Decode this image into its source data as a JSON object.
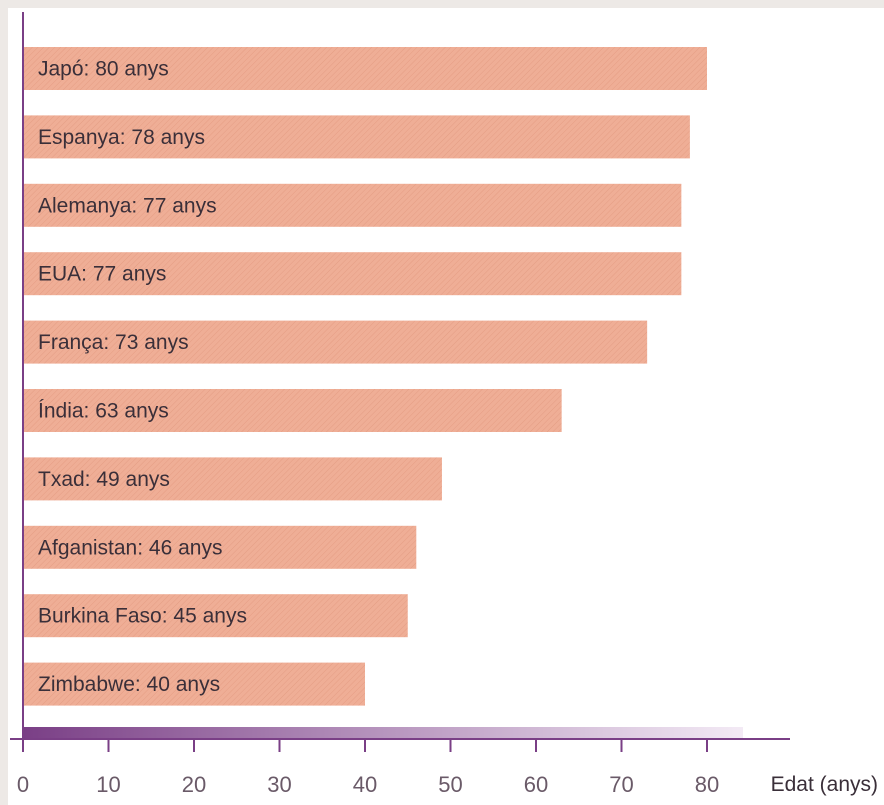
{
  "chart_data": {
    "type": "bar",
    "orientation": "horizontal",
    "categories": [
      "Japó",
      "Espanya",
      "Alemanya",
      "EUA",
      "França",
      "Índia",
      "Txad",
      "Afganistan",
      "Burkina Faso",
      "Zimbabwe"
    ],
    "values": [
      80,
      78,
      77,
      77,
      73,
      63,
      49,
      46,
      45,
      40
    ],
    "bar_labels": [
      "Japó: 80 anys",
      "Espanya: 78 anys",
      "Alemanya: 77 anys",
      "EUA: 77 anys",
      "França: 73 anys",
      "Índia: 63 anys",
      "Txad: 49 anys",
      "Afganistan: 46 anys",
      "Burkina Faso: 45 anys",
      "Zimbabwe: 40 anys"
    ],
    "xlabel": "Edat (anys)",
    "ylabel": "",
    "title": "",
    "xlim": [
      0,
      80
    ],
    "xticks": [
      0,
      10,
      20,
      30,
      40,
      50,
      60,
      70,
      80
    ],
    "grid": false,
    "colors": {
      "bar": "#efae96",
      "axis": "#7a3f86",
      "axis_band_start": "#7a3f86",
      "axis_band_end": "#f3eaf5"
    }
  }
}
